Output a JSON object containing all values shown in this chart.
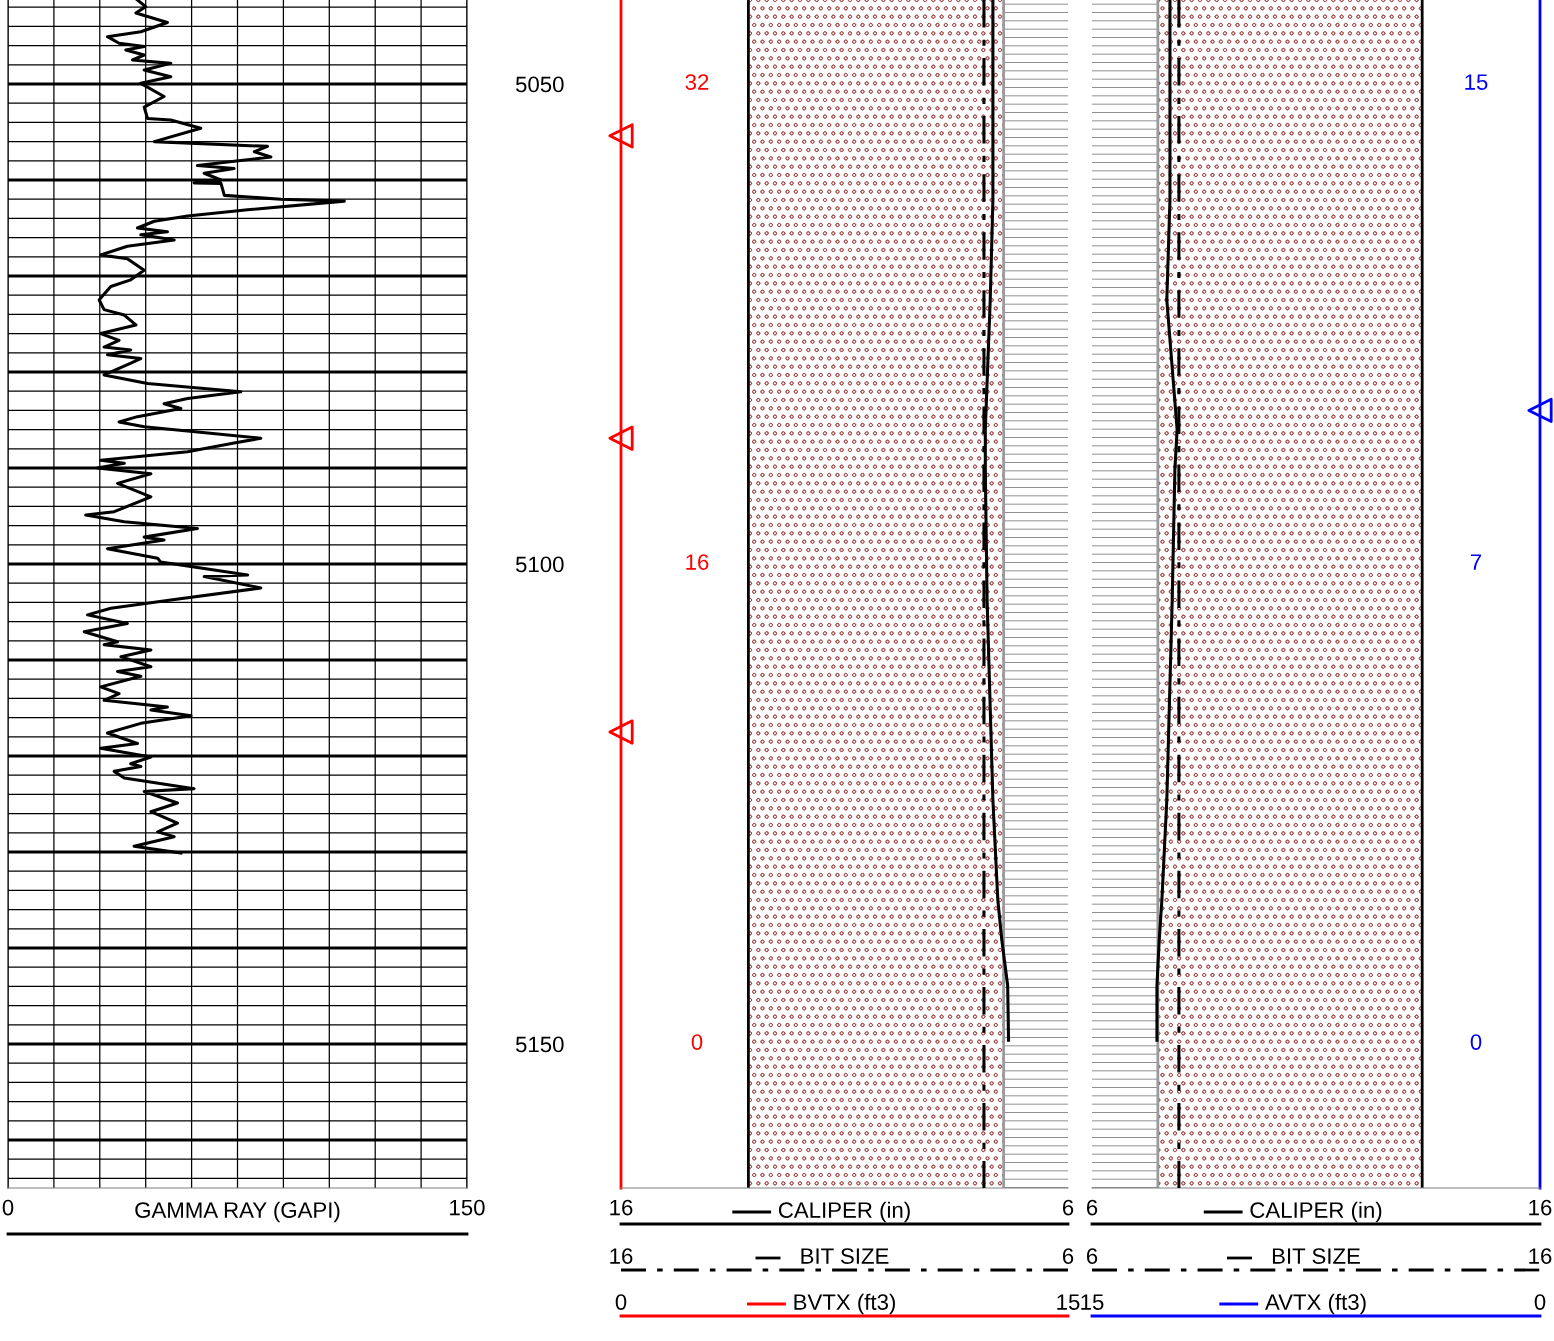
{
  "chart_data": [
    {
      "type": "line",
      "orientation": "horizontal",
      "xlabel": "GAMMA RAY (GAPI)",
      "xlim": [
        0,
        150
      ],
      "xticks": [
        0,
        {
          "value": 15,
          "label": null
        },
        {
          "value": 30,
          "label": null
        },
        {
          "value": 45,
          "label": null
        },
        {
          "value": 60,
          "label": null
        },
        {
          "value": 75,
          "label": null
        },
        {
          "value": 90,
          "label": null
        },
        {
          "value": 105,
          "label": null
        },
        {
          "value": 120,
          "label": null
        },
        {
          "value": 135,
          "label": null
        },
        150
      ],
      "ylim": [
        5165,
        5041.25
      ],
      "yticks": [
        {
          "value": 5042,
          "label": null
        },
        {
          "value": 5044,
          "label": null
        },
        {
          "value": 5046,
          "label": null
        },
        {
          "value": 5048,
          "label": null
        },
        5050,
        {
          "value": 5052,
          "label": null
        },
        {
          "value": 5054,
          "label": null
        },
        {
          "value": 5056,
          "label": null
        },
        {
          "value": 5058,
          "label": null
        },
        {
          "value": 5060,
          "label": null
        },
        {
          "value": 5062,
          "label": null
        },
        {
          "value": 5064,
          "label": null
        },
        {
          "value": 5066,
          "label": null
        },
        {
          "value": 5068,
          "label": null
        },
        {
          "value": 5070,
          "label": null
        },
        {
          "value": 5072,
          "label": null
        },
        {
          "value": 5074,
          "label": null
        },
        {
          "value": 5076,
          "label": null
        },
        {
          "value": 5078,
          "label": null
        },
        {
          "value": 5080,
          "label": null
        },
        {
          "value": 5082,
          "label": null
        },
        {
          "value": 5084,
          "label": null
        },
        {
          "value": 5086,
          "label": null
        },
        {
          "value": 5088,
          "label": null
        },
        {
          "value": 5090,
          "label": null
        },
        {
          "value": 5092,
          "label": null
        },
        {
          "value": 5094,
          "label": null
        },
        {
          "value": 5096,
          "label": null
        },
        {
          "value": 5098,
          "label": null
        },
        5100,
        {
          "value": 5102,
          "label": null
        },
        {
          "value": 5104,
          "label": null
        },
        {
          "value": 5106,
          "label": null
        },
        {
          "value": 5108,
          "label": null
        },
        {
          "value": 5110,
          "label": null
        },
        {
          "value": 5112,
          "label": null
        },
        {
          "value": 5114,
          "label": null
        },
        {
          "value": 5116,
          "label": null
        },
        {
          "value": 5118,
          "label": null
        },
        {
          "value": 5120,
          "label": null
        },
        {
          "value": 5122,
          "label": null
        },
        {
          "value": 5124,
          "label": null
        },
        {
          "value": 5126,
          "label": null
        },
        {
          "value": 5128,
          "label": null
        },
        {
          "value": 5130,
          "label": null
        },
        {
          "value": 5132,
          "label": null
        },
        {
          "value": 5134,
          "label": null
        },
        {
          "value": 5136,
          "label": null
        },
        {
          "value": 5138,
          "label": null
        },
        {
          "value": 5140,
          "label": null
        },
        {
          "value": 5142,
          "label": null
        },
        {
          "value": 5144,
          "label": null
        },
        {
          "value": 5146,
          "label": null
        },
        {
          "value": 5148,
          "label": null
        },
        5150,
        {
          "value": 5152,
          "label": null
        },
        {
          "value": 5154,
          "label": null
        },
        {
          "value": 5156,
          "label": null
        },
        {
          "value": 5158,
          "label": null
        },
        {
          "value": 5160,
          "label": null
        },
        {
          "value": 5162,
          "label": null
        },
        {
          "value": 5164,
          "label": null
        }
      ],
      "grid": true,
      "series": [
        {
          "color": "#000000",
          "x": [
            5041.25,
            5041.94,
            5042.6,
            5043.6,
            5044.55,
            5045.07,
            5045.76,
            5046.1,
            5046.46,
            5046.98,
            5047.5,
            5047.85,
            5048.54,
            5049.24,
            5049.93,
            5051.3,
            5052.4,
            5053.6,
            5053.75,
            5054.6,
            5056.0,
            5056.5,
            5057.05,
            5057.6,
            5058.5,
            5058.8,
            5059.3,
            5060.0,
            5060.3,
            5060.35,
            5061.6,
            5062.0,
            5062.2,
            5063.1,
            5063.75,
            5064.3,
            5065.0,
            5065.4,
            5065.7,
            5066.25,
            5066.9,
            5067.8,
            5068.2,
            5069.4,
            5070.4,
            5071.1,
            5072.3,
            5072.5,
            5073.5,
            5074.07,
            5075.1,
            5076.0,
            5076.7,
            5077.4,
            5077.7,
            5078.2,
            5078.6,
            5079.3,
            5080.3,
            5081.2,
            5082.05,
            5082.75,
            5083.3,
            5083.8,
            5084.65,
            5085.2,
            5085.7,
            5086.9,
            5087.4,
            5088.3,
            5089.2,
            5089.5,
            5090.0,
            5090.6,
            5091.6,
            5093.0,
            5094.55,
            5094.9,
            5095.6,
            5096.3,
            5097.2,
            5097.5,
            5098.4,
            5099.4,
            5099.8,
            5101.15,
            5101.3,
            5102.5,
            5103.75,
            5104.6,
            5105.3,
            5106.2,
            5107.05,
            5108.1,
            5108.4,
            5108.96,
            5109.65,
            5110.7,
            5111.2,
            5111.7,
            5112.8,
            5113.5,
            5114.2,
            5114.9,
            5115.2,
            5115.8,
            5116.6,
            5117.6,
            5118.7,
            5119.2,
            5120.1,
            5120.8,
            5121.1,
            5121.6,
            5122.3,
            5123.4,
            5123.7,
            5124.9,
            5125.8,
            5127.0,
            5127.9,
            5128.4,
            5129.4,
            5130.1
          ],
          "values": [
            42.3,
            45.0,
            41.8,
            52.1,
            43.4,
            32.5,
            36.3,
            44.5,
            38.5,
            44.5,
            40.7,
            53.2,
            44.5,
            53.2,
            43.4,
            51.0,
            44.5,
            45.6,
            53.2,
            63.0,
            47.8,
            84.8,
            80.5,
            85.9,
            61.9,
            73.9,
            64.1,
            69.6,
            60.8,
            69.6,
            70.7,
            89.2,
            109.9,
            78.3,
            58.7,
            47.8,
            42.3,
            52.1,
            43.4,
            54.3,
            39.0,
            30.3,
            39.0,
            44.5,
            40.1,
            33.6,
            30.3,
            29.8,
            31.4,
            38.0,
            41.8,
            30.3,
            36.3,
            31.4,
            40.1,
            32.5,
            43.4,
            38.5,
            31.4,
            45.6,
            76.1,
            58.7,
            51.0,
            56.5,
            42.3,
            36.3,
            44.5,
            82.6,
            73.9,
            58.7,
            30.3,
            38.0,
            29.2,
            46.7,
            35.8,
            46.7,
            34.7,
            25.4,
            38.0,
            61.9,
            44.5,
            51.0,
            32.5,
            48.9,
            49.9,
            78.3,
            64.1,
            82.6,
            53.2,
            33.6,
            26.0,
            39.0,
            24.9,
            35.8,
            31.4,
            46.7,
            36.9,
            46.7,
            35.8,
            43.4,
            30.3,
            36.3,
            31.4,
            52.1,
            46.7,
            59.8,
            43.4,
            32.5,
            42.3,
            30.3,
            46.7,
            40.1,
            43.4,
            34.7,
            38.0,
            60.8,
            44.5,
            55.4,
            46.7,
            55.4,
            48.9,
            54.3,
            41.2,
            56.5
          ]
        }
      ]
    },
    {
      "type": "line",
      "orientation": "horizontal",
      "xlim": [
        16,
        6
      ],
      "xticks": [
        16,
        6
      ],
      "ylim": [
        5165,
        5041.25
      ],
      "legend": "bottom",
      "bands": [
        {
          "axis": "x",
          "from": 13.15,
          "to": 7.44,
          "color": "#a04848"
        },
        {
          "axis": "x",
          "from": 7.44,
          "to": 6,
          "color": "#8c8c8c"
        }
      ],
      "ref_lines": [
        {
          "axis": "x",
          "value": 13.15,
          "color": "#000000"
        },
        {
          "axis": "x",
          "value": 7.44,
          "color": "#9a9a9a"
        }
      ],
      "tick_labels": "x",
      "annotations": [
        "16",
        "6",
        "0",
        "15",
        "32",
        "16",
        "0"
      ],
      "series": [
        {
          "name": "CALIPER (in)",
          "color": "#000000",
          "x": [
            5041.25,
            5062.1,
            5072.5,
            5086.0,
            5090.2,
            5103.75,
            5124.6,
            5135.0,
            5139.2,
            5143.9,
            5149.6
          ],
          "values": [
            7.68,
            7.68,
            7.74,
            7.85,
            7.85,
            7.81,
            7.68,
            7.57,
            7.48,
            7.35,
            7.33
          ]
        },
        {
          "name": "BIT SIZE",
          "color": "#000000",
          "line_style": "dashed",
          "x": [
            5041.25,
            5165
          ],
          "values": [
            7.88,
            7.88
          ]
        },
        {
          "name": "BVTX (ft3)",
          "type": "scatter",
          "marker": "triangle",
          "color": "#ff0000",
          "x": [
            5055.4,
            5086.9,
            5117.5
          ],
          "values": [
            16,
            16,
            16
          ]
        }
      ]
    },
    {
      "type": "line",
      "orientation": "horizontal",
      "xlim": [
        6,
        16
      ],
      "xticks": [
        6,
        16
      ],
      "ylim": [
        5165,
        5041.25
      ],
      "legend": "bottom",
      "bands": [
        {
          "axis": "x",
          "from": 7.47,
          "to": 13.37,
          "color": "#a04848"
        },
        {
          "axis": "x",
          "from": 6,
          "to": 7.47,
          "color": "#8c8c8c"
        }
      ],
      "ref_lines": [
        {
          "axis": "x",
          "value": 13.37,
          "color": "#000000"
        },
        {
          "axis": "x",
          "value": 7.47,
          "color": "#9a9a9a"
        }
      ],
      "tick_labels": "x",
      "annotations": [
        "6",
        "16",
        "15",
        "0",
        "15",
        "7",
        "0"
      ],
      "series": [
        {
          "name": "CALIPER (in)",
          "color": "#000000",
          "x": [
            5041.25,
            5062.1,
            5072.5,
            5086.0,
            5090.2,
            5103.75,
            5124.6,
            5135.0,
            5139.2,
            5143.9,
            5149.6
          ],
          "values": [
            7.74,
            7.74,
            7.67,
            7.9,
            7.85,
            7.79,
            7.67,
            7.56,
            7.5,
            7.45,
            7.45
          ]
        },
        {
          "name": "BIT SIZE",
          "color": "#000000",
          "line_style": "dashed",
          "x": [
            5041.25,
            5165
          ],
          "values": [
            7.94,
            7.94
          ]
        },
        {
          "name": "AVTX (ft3)",
          "type": "scatter",
          "marker": "triangle",
          "color": "#0000ff",
          "x": [
            5084
          ],
          "values": [
            16
          ]
        }
      ]
    }
  ]
}
